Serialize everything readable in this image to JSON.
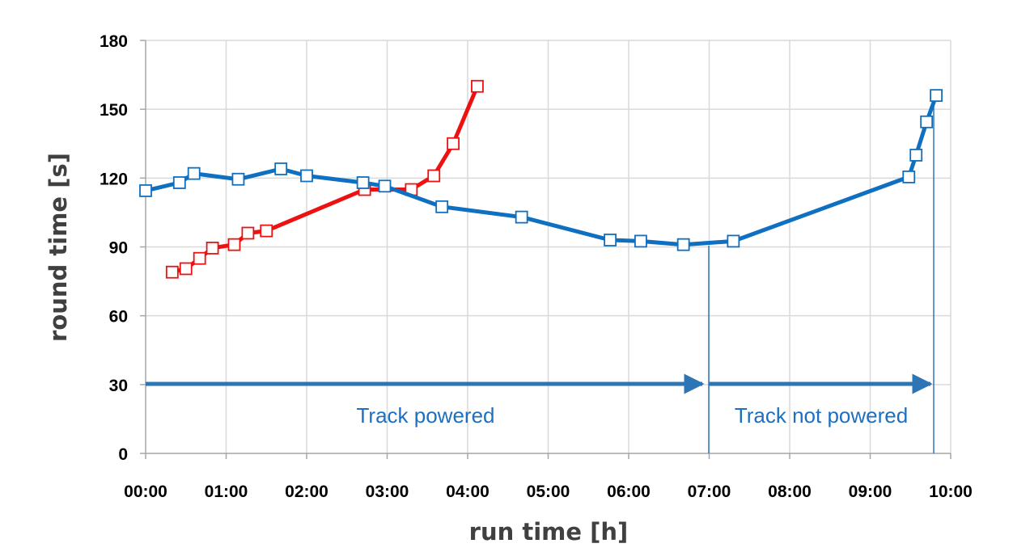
{
  "chart_data": {
    "type": "line",
    "title": "",
    "xlabel": "run time [h]",
    "ylabel": "round time [s]",
    "xlim": [
      0,
      10
    ],
    "ylim": [
      0,
      180
    ],
    "x_tick_labels": [
      "00:00",
      "01:00",
      "02:00",
      "03:00",
      "04:00",
      "05:00",
      "06:00",
      "07:00",
      "08:00",
      "09:00",
      "10:00"
    ],
    "y_tick_labels": [
      "0",
      "30",
      "60",
      "90",
      "120",
      "150",
      "180"
    ],
    "grid": true,
    "legend": "none",
    "colors": {
      "red_series": "#EE1111",
      "blue_series": "#0F6FC0",
      "annotation": "#2E75B6"
    },
    "series": [
      {
        "x": [
          0.33,
          0.5,
          0.67,
          0.83,
          1.1,
          1.27,
          1.5,
          2.72,
          3.3,
          3.58,
          3.82,
          4.12
        ],
        "values": [
          79,
          80.5,
          85,
          89.5,
          91,
          96,
          97,
          115,
          115,
          121,
          135,
          160
        ]
      },
      {
        "x": [
          0.0,
          0.42,
          0.6,
          1.15,
          1.68,
          2.0,
          2.7,
          2.97,
          3.68,
          4.67,
          5.77,
          6.15,
          6.68,
          7.3,
          9.48,
          9.57,
          9.7,
          9.82
        ],
        "values": [
          114.5,
          118,
          122,
          119.5,
          124,
          121,
          118,
          116.5,
          107.5,
          103,
          93,
          92.5,
          91,
          92.5,
          120.5,
          130,
          144.5,
          156
        ]
      }
    ],
    "annotations": {
      "track_powered": "Track powered",
      "track_not_powered": "Track not powered"
    }
  }
}
